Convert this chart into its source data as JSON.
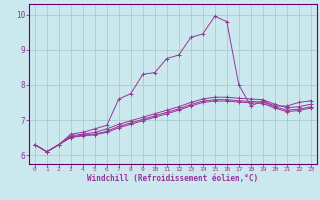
{
  "background_color": "#cce8ef",
  "grid_color": "#aacccc",
  "line_color": "#993399",
  "spine_color": "#660066",
  "xlabel": "Windchill (Refroidissement éolien,°C)",
  "xlim": [
    -0.5,
    23.5
  ],
  "ylim": [
    5.75,
    10.3
  ],
  "xticks": [
    0,
    1,
    2,
    3,
    4,
    5,
    6,
    7,
    8,
    9,
    10,
    11,
    12,
    13,
    14,
    15,
    16,
    17,
    18,
    19,
    20,
    21,
    22,
    23
  ],
  "yticks": [
    6,
    7,
    8,
    9,
    10
  ],
  "series": [
    {
      "x": [
        0,
        1,
        2,
        3,
        4,
        5,
        6,
        7,
        8,
        9,
        10,
        11,
        12,
        13,
        14,
        15,
        16,
        17,
        18,
        19,
        20,
        21,
        22,
        23
      ],
      "y": [
        6.3,
        6.1,
        6.3,
        6.6,
        6.65,
        6.75,
        6.85,
        7.6,
        7.75,
        8.3,
        8.35,
        8.75,
        8.85,
        9.35,
        9.45,
        9.95,
        9.8,
        8.0,
        7.4,
        7.55,
        7.4,
        7.4,
        7.5,
        7.55
      ]
    },
    {
      "x": [
        0,
        1,
        2,
        3,
        4,
        5,
        6,
        7,
        8,
        9,
        10,
        11,
        12,
        13,
        14,
        15,
        16,
        17,
        18,
        19,
        20,
        21,
        22,
        23
      ],
      "y": [
        6.3,
        6.1,
        6.3,
        6.55,
        6.6,
        6.65,
        6.75,
        6.88,
        6.98,
        7.08,
        7.18,
        7.28,
        7.38,
        7.5,
        7.6,
        7.65,
        7.65,
        7.62,
        7.6,
        7.58,
        7.45,
        7.35,
        7.38,
        7.45
      ]
    },
    {
      "x": [
        0,
        1,
        2,
        3,
        4,
        5,
        6,
        7,
        8,
        9,
        10,
        11,
        12,
        13,
        14,
        15,
        16,
        17,
        18,
        19,
        20,
        21,
        22,
        23
      ],
      "y": [
        6.3,
        6.1,
        6.3,
        6.52,
        6.57,
        6.6,
        6.68,
        6.82,
        6.92,
        7.02,
        7.12,
        7.22,
        7.32,
        7.44,
        7.54,
        7.58,
        7.58,
        7.55,
        7.53,
        7.51,
        7.38,
        7.28,
        7.31,
        7.38
      ]
    },
    {
      "x": [
        0,
        1,
        2,
        3,
        4,
        5,
        6,
        7,
        8,
        9,
        10,
        11,
        12,
        13,
        14,
        15,
        16,
        17,
        18,
        19,
        20,
        21,
        22,
        23
      ],
      "y": [
        6.3,
        6.1,
        6.3,
        6.5,
        6.55,
        6.58,
        6.65,
        6.78,
        6.88,
        6.98,
        7.08,
        7.18,
        7.28,
        7.4,
        7.5,
        7.54,
        7.54,
        7.51,
        7.49,
        7.47,
        7.34,
        7.24,
        7.27,
        7.34
      ]
    }
  ]
}
